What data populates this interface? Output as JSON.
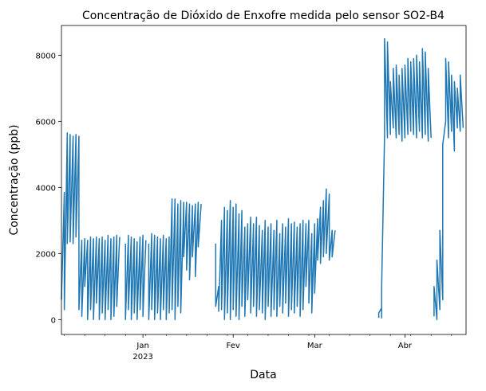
{
  "chart_data": {
    "type": "line",
    "title": "Concentração de Dióxido de Enxofre medida pelo sensor SO2-B4",
    "xlabel": "Data",
    "ylabel": "Concentração (ppb)",
    "xlim": [
      "2022-12-04",
      "2023-04-22"
    ],
    "ylim": [
      -450,
      8900
    ],
    "y_ticks": [
      0,
      2000,
      4000,
      6000,
      8000
    ],
    "x_ticks": [
      {
        "date": "2023-01-01",
        "label": "Jan",
        "sublabel": "2023"
      },
      {
        "date": "2023-02-01",
        "label": "Fev",
        "sublabel": ""
      },
      {
        "date": "2023-03-01",
        "label": "Mar",
        "sublabel": ""
      },
      {
        "date": "2023-04-01",
        "label": "Abr",
        "sublabel": ""
      }
    ],
    "grid": false,
    "legend": "none",
    "colors": {
      "line": "#1f77b4"
    },
    "series": [
      {
        "points": [
          [
            "2022-12-04",
            600
          ],
          [
            "2022-12-05",
            3850
          ],
          [
            "2022-12-05",
            300
          ],
          [
            "2022-12-06",
            5650
          ],
          [
            "2022-12-06",
            2300
          ],
          [
            "2022-12-07",
            5600
          ],
          [
            "2022-12-07",
            2350
          ],
          [
            "2022-12-08",
            5550
          ],
          [
            "2022-12-08",
            2300
          ],
          [
            "2022-12-09",
            5600
          ],
          [
            "2022-12-09",
            2500
          ],
          [
            "2022-12-10",
            5550
          ],
          [
            "2022-12-10",
            300
          ],
          [
            "2022-12-11",
            2400
          ],
          [
            "2022-12-11",
            100
          ],
          [
            "2022-12-12",
            2450
          ],
          [
            "2022-12-12",
            1000
          ],
          [
            "2022-12-13",
            2400
          ],
          [
            "2022-12-13",
            0
          ],
          [
            "2022-12-14",
            2500
          ],
          [
            "2022-12-14",
            300
          ],
          [
            "2022-12-15",
            2450
          ],
          [
            "2022-12-15",
            0
          ],
          [
            "2022-12-16",
            2500
          ],
          [
            "2022-12-16",
            500
          ],
          [
            "2022-12-17",
            2450
          ],
          [
            "2022-12-17",
            0
          ],
          [
            "2022-12-18",
            2500
          ],
          [
            "2022-12-18",
            200
          ],
          [
            "2022-12-19",
            2400
          ],
          [
            "2022-12-19",
            0
          ],
          [
            "2022-12-20",
            2550
          ],
          [
            "2022-12-20",
            300
          ],
          [
            "2022-12-21",
            2450
          ],
          [
            "2022-12-21",
            0
          ],
          [
            "2022-12-22",
            2500
          ],
          [
            "2022-12-22",
            100
          ],
          [
            "2022-12-23",
            2550
          ],
          [
            "2022-12-23",
            400
          ],
          [
            "2022-12-24",
            2500
          ]
        ]
      },
      {
        "points": [
          [
            "2022-12-26",
            2300
          ],
          [
            "2022-12-26",
            0
          ],
          [
            "2022-12-27",
            2550
          ],
          [
            "2022-12-27",
            300
          ],
          [
            "2022-12-28",
            2500
          ],
          [
            "2022-12-28",
            0
          ],
          [
            "2022-12-29",
            2450
          ],
          [
            "2022-12-29",
            200
          ],
          [
            "2022-12-30",
            2350
          ],
          [
            "2022-12-30",
            0
          ],
          [
            "2022-12-31",
            2500
          ],
          [
            "2022-12-31",
            300
          ],
          [
            "2023-01-01",
            2550
          ],
          [
            "2023-01-01",
            100
          ],
          [
            "2023-01-02",
            2400
          ]
        ]
      },
      {
        "points": [
          [
            "2023-01-03",
            2300
          ],
          [
            "2023-01-03",
            0
          ],
          [
            "2023-01-04",
            2600
          ],
          [
            "2023-01-04",
            300
          ],
          [
            "2023-01-05",
            2550
          ],
          [
            "2023-01-05",
            0
          ],
          [
            "2023-01-06",
            2500
          ],
          [
            "2023-01-06",
            200
          ],
          [
            "2023-01-07",
            2450
          ],
          [
            "2023-01-07",
            0
          ],
          [
            "2023-01-08",
            2550
          ],
          [
            "2023-01-08",
            300
          ],
          [
            "2023-01-09",
            2450
          ],
          [
            "2023-01-09",
            0
          ],
          [
            "2023-01-10",
            2500
          ],
          [
            "2023-01-10",
            200
          ],
          [
            "2023-01-11",
            3650
          ],
          [
            "2023-01-11",
            300
          ],
          [
            "2023-01-12",
            3650
          ],
          [
            "2023-01-12",
            0
          ],
          [
            "2023-01-13",
            3500
          ],
          [
            "2023-01-13",
            400
          ],
          [
            "2023-01-14",
            3600
          ],
          [
            "2023-01-14",
            200
          ],
          [
            "2023-01-15",
            3550
          ],
          [
            "2023-01-15",
            1900
          ],
          [
            "2023-01-16",
            3550
          ],
          [
            "2023-01-16",
            1500
          ],
          [
            "2023-01-17",
            3500
          ],
          [
            "2023-01-17",
            1200
          ],
          [
            "2023-01-18",
            3450
          ],
          [
            "2023-01-18",
            1900
          ],
          [
            "2023-01-19",
            3500
          ],
          [
            "2023-01-19",
            1300
          ],
          [
            "2023-01-20",
            3550
          ],
          [
            "2023-01-20",
            2200
          ],
          [
            "2023-01-21",
            3500
          ]
        ]
      },
      {
        "points": [
          [
            "2023-01-26",
            2300
          ],
          [
            "2023-01-26",
            400
          ],
          [
            "2023-01-27",
            1000
          ],
          [
            "2023-01-27",
            250
          ],
          [
            "2023-01-28",
            3000
          ],
          [
            "2023-01-28",
            300
          ],
          [
            "2023-01-29",
            3400
          ],
          [
            "2023-01-29",
            0
          ],
          [
            "2023-01-30",
            3300
          ],
          [
            "2023-01-30",
            200
          ],
          [
            "2023-01-31",
            3600
          ],
          [
            "2023-01-31",
            0
          ],
          [
            "2023-02-01",
            3400
          ],
          [
            "2023-02-01",
            300
          ],
          [
            "2023-02-02",
            3500
          ],
          [
            "2023-02-02",
            100
          ],
          [
            "2023-02-03",
            3200
          ],
          [
            "2023-02-03",
            0
          ],
          [
            "2023-02-04",
            3300
          ],
          [
            "2023-02-04",
            400
          ],
          [
            "2023-02-05",
            2800
          ],
          [
            "2023-02-05",
            100
          ],
          [
            "2023-02-06",
            2900
          ],
          [
            "2023-02-06",
            600
          ],
          [
            "2023-02-07",
            3100
          ],
          [
            "2023-02-07",
            200
          ],
          [
            "2023-02-08",
            2900
          ],
          [
            "2023-02-08",
            400
          ],
          [
            "2023-02-09",
            3100
          ],
          [
            "2023-02-09",
            100
          ],
          [
            "2023-02-10",
            2850
          ],
          [
            "2023-02-10",
            300
          ],
          [
            "2023-02-11",
            2700
          ],
          [
            "2023-02-11",
            200
          ],
          [
            "2023-02-12",
            3000
          ],
          [
            "2023-02-12",
            0
          ],
          [
            "2023-02-13",
            2800
          ],
          [
            "2023-02-13",
            400
          ],
          [
            "2023-02-14",
            2900
          ],
          [
            "2023-02-14",
            100
          ],
          [
            "2023-02-15",
            2700
          ],
          [
            "2023-02-15",
            300
          ],
          [
            "2023-02-16",
            3000
          ],
          [
            "2023-02-16",
            100
          ],
          [
            "2023-02-17",
            2600
          ],
          [
            "2023-02-17",
            400
          ],
          [
            "2023-02-18",
            2900
          ],
          [
            "2023-02-18",
            200
          ],
          [
            "2023-02-19",
            2800
          ],
          [
            "2023-02-19",
            500
          ],
          [
            "2023-02-20",
            3050
          ],
          [
            "2023-02-20",
            100
          ],
          [
            "2023-02-21",
            2900
          ],
          [
            "2023-02-21",
            300
          ],
          [
            "2023-02-22",
            2950
          ],
          [
            "2023-02-22",
            200
          ],
          [
            "2023-02-23",
            2800
          ],
          [
            "2023-02-23",
            400
          ],
          [
            "2023-02-24",
            2900
          ],
          [
            "2023-02-24",
            100
          ],
          [
            "2023-02-25",
            3000
          ],
          [
            "2023-02-25",
            300
          ],
          [
            "2023-02-26",
            2900
          ],
          [
            "2023-02-26",
            1000
          ],
          [
            "2023-02-27",
            3000
          ],
          [
            "2023-02-27",
            500
          ],
          [
            "2023-02-28",
            2600
          ],
          [
            "2023-02-28",
            200
          ],
          [
            "2023-03-01",
            2900
          ],
          [
            "2023-03-01",
            800
          ],
          [
            "2023-03-02",
            3050
          ],
          [
            "2023-03-02",
            1800
          ],
          [
            "2023-03-03",
            3400
          ],
          [
            "2023-03-03",
            1700
          ],
          [
            "2023-03-04",
            3600
          ],
          [
            "2023-03-04",
            1900
          ],
          [
            "2023-03-05",
            3950
          ],
          [
            "2023-03-05",
            2000
          ],
          [
            "2023-03-06",
            3800
          ],
          [
            "2023-03-06",
            1800
          ],
          [
            "2023-03-07",
            2700
          ],
          [
            "2023-03-07",
            1900
          ],
          [
            "2023-03-08",
            2700
          ]
        ]
      },
      {
        "points": [
          [
            "2023-03-23",
            50
          ],
          [
            "2023-03-23",
            200
          ],
          [
            "2023-03-24",
            350
          ],
          [
            "2023-03-24",
            50
          ],
          [
            "2023-03-24",
            950
          ],
          [
            "2023-03-25",
            5600
          ],
          [
            "2023-03-25",
            8500
          ],
          [
            "2023-03-26",
            5500
          ],
          [
            "2023-03-26",
            8400
          ],
          [
            "2023-03-27",
            5600
          ],
          [
            "2023-03-27",
            7200
          ],
          [
            "2023-03-28",
            5800
          ],
          [
            "2023-03-28",
            7600
          ],
          [
            "2023-03-29",
            5500
          ],
          [
            "2023-03-29",
            7700
          ],
          [
            "2023-03-30",
            5600
          ],
          [
            "2023-03-30",
            7400
          ],
          [
            "2023-03-31",
            5400
          ],
          [
            "2023-03-31",
            7600
          ],
          [
            "2023-04-01",
            5500
          ],
          [
            "2023-04-01",
            7700
          ],
          [
            "2023-04-02",
            5600
          ],
          [
            "2023-04-02",
            7900
          ],
          [
            "2023-04-03",
            5700
          ],
          [
            "2023-04-03",
            7800
          ],
          [
            "2023-04-04",
            5600
          ],
          [
            "2023-04-04",
            7900
          ],
          [
            "2023-04-05",
            5500
          ],
          [
            "2023-04-05",
            8000
          ],
          [
            "2023-04-06",
            5700
          ],
          [
            "2023-04-06",
            7800
          ],
          [
            "2023-04-07",
            5500
          ],
          [
            "2023-04-07",
            8200
          ],
          [
            "2023-04-08",
            5600
          ],
          [
            "2023-04-08",
            8100
          ],
          [
            "2023-04-09",
            5400
          ],
          [
            "2023-04-09",
            7600
          ],
          [
            "2023-04-10",
            5500
          ]
        ]
      },
      {
        "points": [
          [
            "2023-04-11",
            100
          ],
          [
            "2023-04-11",
            1000
          ],
          [
            "2023-04-12",
            0
          ],
          [
            "2023-04-12",
            1800
          ],
          [
            "2023-04-13",
            300
          ],
          [
            "2023-04-13",
            2700
          ],
          [
            "2023-04-14",
            600
          ],
          [
            "2023-04-14",
            5300
          ],
          [
            "2023-04-15",
            6000
          ],
          [
            "2023-04-15",
            7900
          ],
          [
            "2023-04-16",
            5500
          ],
          [
            "2023-04-16",
            7800
          ],
          [
            "2023-04-17",
            5700
          ],
          [
            "2023-04-17",
            7400
          ],
          [
            "2023-04-18",
            5100
          ],
          [
            "2023-04-18",
            7200
          ],
          [
            "2023-04-19",
            5800
          ],
          [
            "2023-04-19",
            7000
          ],
          [
            "2023-04-20",
            5700
          ],
          [
            "2023-04-20",
            7400
          ],
          [
            "2023-04-21",
            5800
          ]
        ]
      }
    ]
  }
}
